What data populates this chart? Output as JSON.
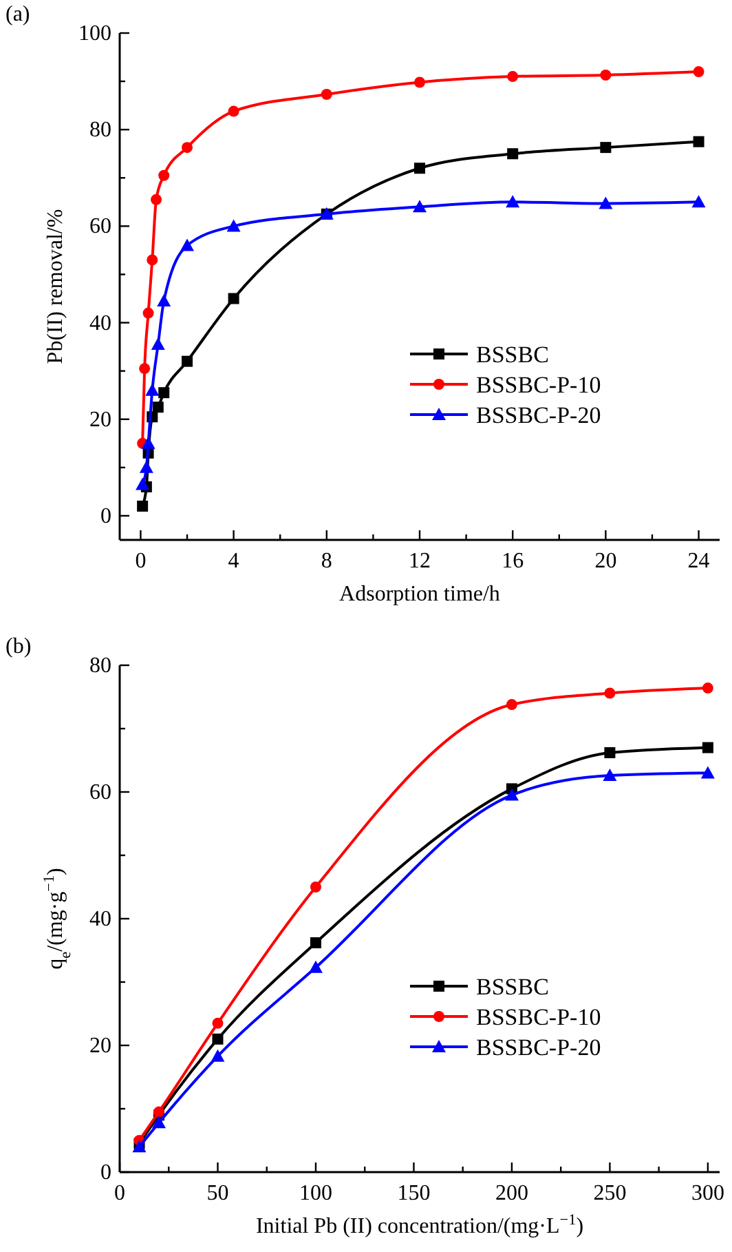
{
  "chart_data": [
    {
      "type": "line",
      "title": "(a)",
      "xlabel": "Adsorption time/h",
      "ylabel": "Pb(II) removal/%",
      "xlim": [
        -0.9,
        24.9
      ],
      "ylim": [
        -5,
        100
      ],
      "xticks": [
        0,
        {
          "value": 2,
          "label": null
        },
        4,
        {
          "value": 6,
          "label": null
        },
        8,
        {
          "value": 10,
          "label": null
        },
        12,
        {
          "value": 14,
          "label": null
        },
        16,
        {
          "value": 18,
          "label": null
        },
        20,
        {
          "value": 22,
          "label": null
        },
        24
      ],
      "yticks": [
        0,
        {
          "value": 10,
          "label": null
        },
        20,
        {
          "value": 30,
          "label": null
        },
        40,
        {
          "value": 50,
          "label": null
        },
        60,
        {
          "value": 70,
          "label": null
        },
        80,
        {
          "value": 90,
          "label": null
        },
        100
      ],
      "legend": "bottom right",
      "grid": false,
      "line_style": "solid",
      "series": [
        {
          "name": "BSSBC",
          "color": "#000000",
          "marker": "square",
          "x": [
            0.08,
            0.25,
            0.33,
            0.5,
            0.75,
            1,
            2,
            4,
            8,
            12,
            16,
            20,
            24
          ],
          "values": [
            2,
            6,
            13,
            20.5,
            22.5,
            25.5,
            32,
            45,
            62.5,
            72,
            75,
            76.3,
            77.5
          ]
        },
        {
          "name": "BSSBC-P-10",
          "color": "#ff0000",
          "marker": "circle",
          "x": [
            0.08,
            0.17,
            0.33,
            0.5,
            0.67,
            1,
            2,
            4,
            8,
            12,
            16,
            20,
            24
          ],
          "values": [
            15,
            30.5,
            42,
            53,
            65.5,
            70.5,
            76.3,
            83.8,
            87.3,
            89.8,
            91,
            91.3,
            92
          ]
        },
        {
          "name": "BSSBC-P-20",
          "color": "#0000ff",
          "marker": "triangle",
          "x": [
            0.08,
            0.25,
            0.33,
            0.5,
            0.75,
            1,
            2,
            4,
            8,
            12,
            16,
            20,
            24
          ],
          "values": [
            6.5,
            10,
            15,
            26,
            35.5,
            44.5,
            56,
            60,
            62.5,
            64,
            65,
            64.7,
            65
          ]
        }
      ]
    },
    {
      "type": "line",
      "title": "(b)",
      "xlabel": "Initial Pb (II) concentration/(mg·L$^{−1}$)",
      "ylabel": "q$_{e}$/(mg·g$^{−1}$)",
      "xlim": [
        0,
        306
      ],
      "ylim": [
        0,
        80
      ],
      "xticks": [
        0,
        {
          "value": 25,
          "label": null
        },
        50,
        {
          "value": 75,
          "label": null
        },
        100,
        {
          "value": 125,
          "label": null
        },
        150,
        {
          "value": 175,
          "label": null
        },
        200,
        {
          "value": 225,
          "label": null
        },
        250,
        {
          "value": 275,
          "label": null
        },
        300
      ],
      "yticks": [
        0,
        {
          "value": 10,
          "label": null
        },
        20,
        {
          "value": 30,
          "label": null
        },
        40,
        {
          "value": 50,
          "label": null
        },
        60,
        {
          "value": 70,
          "label": null
        },
        80
      ],
      "legend": "bottom right",
      "grid": false,
      "line_style": "solid",
      "series": [
        {
          "name": "BSSBC",
          "color": "#000000",
          "marker": "square",
          "x": [
            10,
            20,
            50,
            100,
            200,
            250,
            300
          ],
          "values": [
            4.5,
            9,
            21,
            36.2,
            60.5,
            66.2,
            67
          ]
        },
        {
          "name": "BSSBC-P-10",
          "color": "#ff0000",
          "marker": "circle",
          "x": [
            10,
            20,
            50,
            100,
            200,
            250,
            300
          ],
          "values": [
            5,
            9.5,
            23.5,
            45,
            73.8,
            75.6,
            76.4
          ]
        },
        {
          "name": "BSSBC-P-20",
          "color": "#0000ff",
          "marker": "triangle",
          "x": [
            10,
            20,
            50,
            100,
            200,
            250,
            300
          ],
          "values": [
            4,
            7.8,
            18.3,
            32.3,
            59.5,
            62.6,
            63
          ]
        }
      ]
    }
  ]
}
